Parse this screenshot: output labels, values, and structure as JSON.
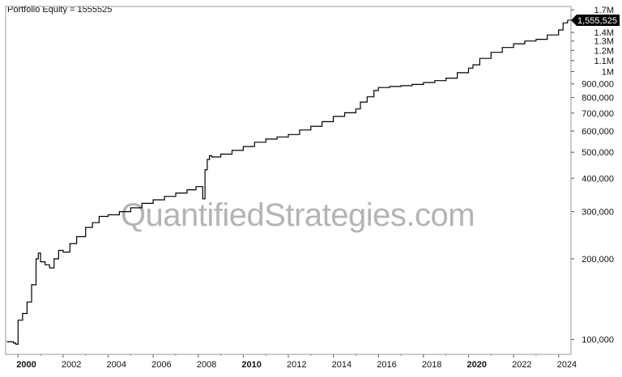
{
  "title_prefix": "Portfolio Equity = ",
  "watermark": "QuantifiedStrategies.com",
  "chart_data": {
    "type": "line",
    "title": "",
    "xlabel": "",
    "ylabel": "",
    "y_scale": "log",
    "ylim": [
      88000,
      1750000
    ],
    "xlim": [
      1999.45,
      2024.55
    ],
    "grid": false,
    "last_value": 1555525,
    "last_value_label": "1,555,525",
    "x_ticks": [
      {
        "value": 2000,
        "label": "2000",
        "bold": true
      },
      {
        "value": 2002,
        "label": "2002",
        "bold": false
      },
      {
        "value": 2004,
        "label": "2004",
        "bold": false
      },
      {
        "value": 2006,
        "label": "2006",
        "bold": false
      },
      {
        "value": 2008,
        "label": "2008",
        "bold": false
      },
      {
        "value": 2010,
        "label": "2010",
        "bold": true
      },
      {
        "value": 2012,
        "label": "2012",
        "bold": false
      },
      {
        "value": 2014,
        "label": "2014",
        "bold": false
      },
      {
        "value": 2016,
        "label": "2016",
        "bold": false
      },
      {
        "value": 2018,
        "label": "2018",
        "bold": false
      },
      {
        "value": 2020,
        "label": "2020",
        "bold": true
      },
      {
        "value": 2022,
        "label": "2022",
        "bold": false
      },
      {
        "value": 2024,
        "label": "2024",
        "bold": false
      }
    ],
    "y_ticks": [
      {
        "value": 100000,
        "label": "100,000"
      },
      {
        "value": 200000,
        "label": "200,000"
      },
      {
        "value": 300000,
        "label": "300,000"
      },
      {
        "value": 400000,
        "label": "400,000"
      },
      {
        "value": 500000,
        "label": "500,000"
      },
      {
        "value": 600000,
        "label": "600,000"
      },
      {
        "value": 700000,
        "label": "700,000"
      },
      {
        "value": 800000,
        "label": "800,000"
      },
      {
        "value": 900000,
        "label": "900,000"
      },
      {
        "value": 1000000,
        "label": "1M"
      },
      {
        "value": 1100000,
        "label": "1.1M"
      },
      {
        "value": 1200000,
        "label": "1.2M"
      },
      {
        "value": 1300000,
        "label": "1.3M"
      },
      {
        "value": 1400000,
        "label": "1.4M"
      },
      {
        "value": 1700000,
        "label": "1.7M"
      }
    ],
    "series": [
      {
        "color": "#000000",
        "x": [
          1999.5,
          1999.8,
          1999.9,
          2000.0,
          2000.2,
          2000.4,
          2000.6,
          2000.8,
          2000.9,
          2001.0,
          2001.2,
          2001.4,
          2001.6,
          2001.8,
          2002.0,
          2002.3,
          2002.6,
          2003.0,
          2003.3,
          2003.6,
          2004.0,
          2004.5,
          2005.0,
          2005.5,
          2006.0,
          2006.5,
          2007.0,
          2007.5,
          2007.9,
          2008.2,
          2008.3,
          2008.4,
          2008.5,
          2008.6,
          2009.0,
          2009.5,
          2010.0,
          2010.5,
          2011.0,
          2011.5,
          2012.0,
          2012.5,
          2013.0,
          2013.5,
          2014.0,
          2014.5,
          2015.0,
          2015.2,
          2015.5,
          2015.8,
          2016.0,
          2016.5,
          2017.0,
          2017.5,
          2018.0,
          2018.5,
          2019.0,
          2019.5,
          2020.0,
          2020.2,
          2020.5,
          2021.0,
          2021.5,
          2022.0,
          2022.5,
          2023.0,
          2023.5,
          2024.0,
          2024.2,
          2024.4
        ],
        "y": [
          98000,
          97000,
          96000,
          118000,
          125000,
          138000,
          160000,
          200000,
          210000,
          195000,
          190000,
          185000,
          200000,
          215000,
          212000,
          228000,
          242000,
          262000,
          273000,
          288000,
          292000,
          300000,
          310000,
          322000,
          332000,
          342000,
          352000,
          362000,
          372000,
          335000,
          430000,
          470000,
          485000,
          480000,
          492000,
          508000,
          525000,
          545000,
          560000,
          570000,
          582000,
          605000,
          625000,
          650000,
          680000,
          702000,
          725000,
          770000,
          805000,
          850000,
          872000,
          880000,
          886000,
          895000,
          910000,
          925000,
          945000,
          990000,
          1030000,
          1060000,
          1120000,
          1180000,
          1230000,
          1270000,
          1300000,
          1320000,
          1370000,
          1430000,
          1520000,
          1555525
        ]
      }
    ]
  }
}
